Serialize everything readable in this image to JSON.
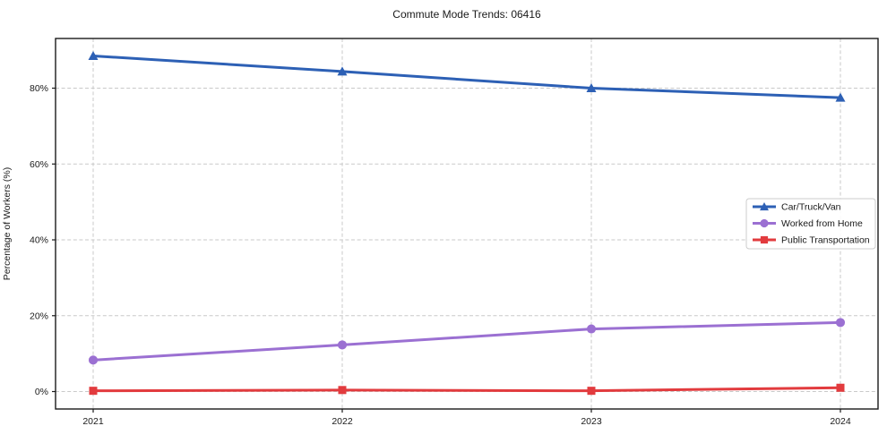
{
  "chart_data": {
    "type": "line",
    "title": "Commute Mode Trends: 06416",
    "xlabel": "",
    "ylabel": "Percentage of Workers (%)",
    "categories": [
      "2021",
      "2022",
      "2023",
      "2024"
    ],
    "series": [
      {
        "name": "Car/Truck/Van",
        "values": [
          88.5,
          84.4,
          80.0,
          77.5
        ],
        "color": "#2d60b5",
        "marker": "triangle"
      },
      {
        "name": "Worked from Home",
        "values": [
          8.3,
          12.3,
          16.5,
          18.2
        ],
        "color": "#9b70d2",
        "marker": "circle"
      },
      {
        "name": "Public Transportation",
        "values": [
          0.2,
          0.4,
          0.2,
          1.0
        ],
        "color": "#e23b3e",
        "marker": "square"
      }
    ],
    "yticks": [
      0,
      20,
      40,
      60,
      80
    ],
    "ytick_suffix": "%",
    "ylim": [
      -4.6,
      93.1
    ],
    "grid": true,
    "grid_style": "dashed",
    "legend": {
      "position": "center right"
    },
    "colors": {
      "grid": "#c9c9c9",
      "spine": "#1a1a1a",
      "text": "#1a1a1a",
      "background": "#ffffff"
    }
  }
}
